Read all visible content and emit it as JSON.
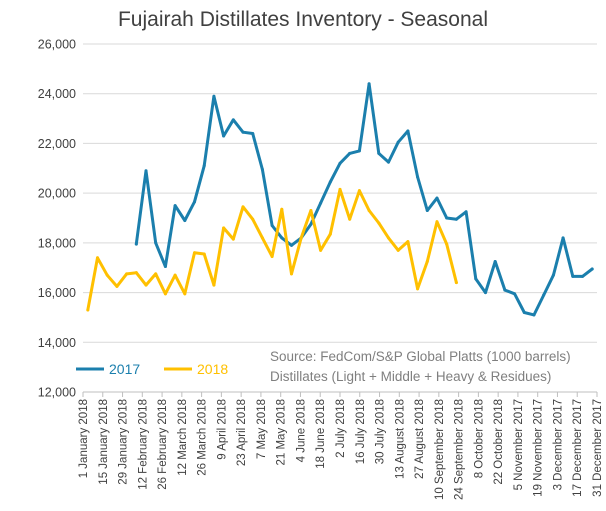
{
  "chart_data": {
    "type": "line",
    "title": "Fujairah Distillates Inventory - Seasonal",
    "xlabel": "",
    "ylabel": "",
    "ylim": [
      12000,
      26000
    ],
    "yticks": [
      12000,
      14000,
      16000,
      18000,
      20000,
      22000,
      24000,
      26000
    ],
    "ytick_labels": [
      "12,000",
      "14,000",
      "16,000",
      "18,000",
      "20,000",
      "22,000",
      "24,000",
      "26,000"
    ],
    "xticks": [
      "1 January 2018",
      "15 January 2018",
      "29 January 2018",
      "12 February 2018",
      "26 February 2018",
      "12 March 2018",
      "26 March 2018",
      "9 April 2018",
      "23 April 2018",
      "7 May 2018",
      "21 May 2018",
      "4 June 2018",
      "18 June 2018",
      "2 July 2018",
      "16 July 2018",
      "30 July 2018",
      "13 August 2018",
      "27 August 2018",
      "10 September 2018",
      "24 September 2018",
      "8 October 2018",
      "22 October 2018",
      "5 November 2017",
      "19 November 2017",
      "3 December 2017",
      "17 December 2017",
      "31 December 2017"
    ],
    "grid": true,
    "series": [
      {
        "name": "2017",
        "color": "#1b7fad",
        "values": [
          null,
          null,
          null,
          null,
          null,
          17950,
          20900,
          18000,
          17050,
          19500,
          18900,
          19650,
          21100,
          23900,
          22300,
          22950,
          22450,
          22400,
          20950,
          18700,
          18200,
          17900,
          18200,
          18750,
          19600,
          20450,
          21200,
          21600,
          21700,
          24400,
          21600,
          21250,
          22050,
          22500,
          20650,
          19300,
          19800,
          19000,
          18950,
          19250,
          16550,
          16000,
          17250,
          16100,
          15950,
          15200,
          15100,
          15900,
          16700,
          18200,
          16650,
          16650,
          16950
        ]
      },
      {
        "name": "2018",
        "color": "#ffc000",
        "values": [
          15300,
          17400,
          16700,
          16250,
          16750,
          16800,
          16300,
          16750,
          15950,
          16700,
          15950,
          17600,
          17550,
          16300,
          18600,
          18150,
          19450,
          18950,
          18200,
          17450,
          19350,
          16750,
          18200,
          19300,
          17700,
          18350,
          20150,
          18950,
          20100,
          19300,
          18800,
          18200,
          17700,
          18050,
          16150,
          17250,
          18850,
          17950,
          16400
        ]
      }
    ],
    "legend": {
      "position": "bottom-left",
      "entries": [
        "2017",
        "2018"
      ]
    },
    "annotations": [
      "Source: FedCom/S&P Global Platts (1000 barrels)",
      "Distillates (Light + Middle + Heavy & Residues)"
    ]
  }
}
